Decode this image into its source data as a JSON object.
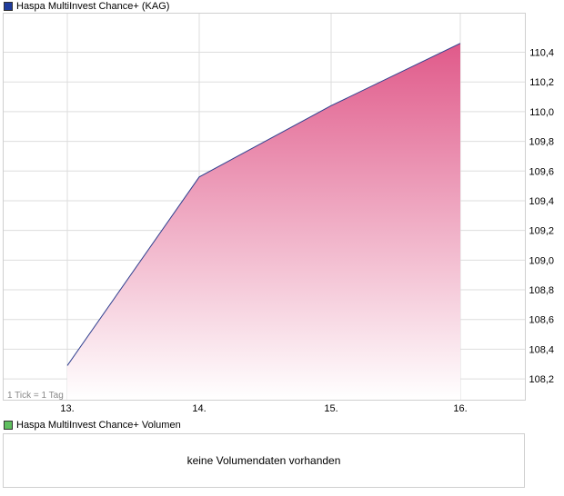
{
  "price_legend": {
    "label": "Haspa MultiInvest Chance+ (KAG)",
    "color": "#1f3c9c"
  },
  "volume_legend": {
    "label": "Haspa MultiInvest Chance+ Volumen",
    "color": "#5fbf5f"
  },
  "tick_note": "1 Tick = 1 Tag",
  "volume_message": "keine Volumendaten vorhanden",
  "colors": {
    "line": "#2f3f8f",
    "fill_top": "#e05a8a",
    "fill_bottom": "#ffffff",
    "grid": "#dddddd",
    "frame": "#cfcfcf"
  },
  "chart_data": {
    "type": "area",
    "series": [
      {
        "name": "Haspa MultiInvest Chance+ (KAG)",
        "x": [
          "13.",
          "14.",
          "15.",
          "16."
        ],
        "values": [
          108.29,
          109.56,
          110.04,
          110.46
        ]
      }
    ],
    "x_tick_labels": [
      "13.",
      "14.",
      "15.",
      "16."
    ],
    "y_ticks": [
      108.2,
      108.4,
      108.6,
      108.8,
      109.0,
      109.2,
      109.4,
      109.6,
      109.8,
      110.0,
      110.2,
      110.4
    ],
    "y_tick_labels": [
      "108,2",
      "108,4",
      "108,6",
      "108,8",
      "109,0",
      "109,2",
      "109,4",
      "109,6",
      "109,8",
      "110,0",
      "110,2",
      "110,4"
    ],
    "ylim": [
      108.06,
      110.66
    ],
    "grid": true,
    "y_axis_side": "right"
  }
}
